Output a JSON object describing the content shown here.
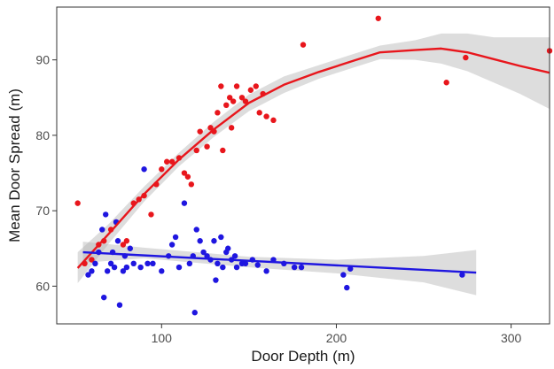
{
  "chart_data": {
    "type": "scatter",
    "title": "",
    "xlabel": "Door Depth (m)",
    "ylabel": "Mean Door Spread (m)",
    "xlim": [
      40,
      322
    ],
    "ylim": [
      55,
      97
    ],
    "xticks": [
      100,
      200,
      300
    ],
    "yticks": [
      60,
      70,
      80,
      90
    ],
    "grid": false,
    "legend": "none",
    "series": [
      {
        "color": "#e8161c",
        "points": [
          [
            52,
            71.0
          ],
          [
            56,
            63.0
          ],
          [
            60,
            63.5
          ],
          [
            64,
            65.5
          ],
          [
            67,
            66.0
          ],
          [
            71,
            67.5
          ],
          [
            74,
            68.5
          ],
          [
            78,
            65.5
          ],
          [
            80,
            66.0
          ],
          [
            84,
            71.0
          ],
          [
            87,
            71.5
          ],
          [
            90,
            72.0
          ],
          [
            94,
            69.5
          ],
          [
            97,
            73.5
          ],
          [
            100,
            75.5
          ],
          [
            103,
            76.5
          ],
          [
            106,
            76.5
          ],
          [
            110,
            77.0
          ],
          [
            113,
            75.0
          ],
          [
            115,
            74.5
          ],
          [
            117,
            73.5
          ],
          [
            120,
            78.0
          ],
          [
            122,
            80.5
          ],
          [
            126,
            78.5
          ],
          [
            128,
            81.0
          ],
          [
            130,
            80.5
          ],
          [
            132,
            83.0
          ],
          [
            134,
            86.5
          ],
          [
            135,
            78.0
          ],
          [
            137,
            84.0
          ],
          [
            139,
            85.0
          ],
          [
            140,
            81.0
          ],
          [
            141,
            84.5
          ],
          [
            143,
            86.5
          ],
          [
            146,
            85.0
          ],
          [
            148,
            84.5
          ],
          [
            151,
            86.0
          ],
          [
            154,
            86.5
          ],
          [
            156,
            83.0
          ],
          [
            158,
            85.5
          ],
          [
            160,
            82.5
          ],
          [
            164,
            82.0
          ],
          [
            181,
            92.0
          ],
          [
            224,
            95.5
          ],
          [
            263,
            87.0
          ],
          [
            274,
            90.3
          ],
          [
            322,
            91.2
          ]
        ],
        "fit": [
          [
            52,
            62.4
          ],
          [
            70,
            67.0
          ],
          [
            90,
            72.2
          ],
          [
            110,
            76.8
          ],
          [
            130,
            80.8
          ],
          [
            150,
            84.3
          ],
          [
            170,
            86.7
          ],
          [
            190,
            88.4
          ],
          [
            210,
            89.9
          ],
          [
            225,
            91.0
          ],
          [
            245,
            91.3
          ],
          [
            260,
            91.5
          ],
          [
            275,
            91.0
          ],
          [
            290,
            90.1
          ],
          [
            305,
            89.2
          ],
          [
            322,
            88.3
          ]
        ],
        "band_upper": [
          [
            52,
            64.5
          ],
          [
            70,
            68.3
          ],
          [
            90,
            73.2
          ],
          [
            110,
            77.7
          ],
          [
            130,
            81.8
          ],
          [
            150,
            85.4
          ],
          [
            170,
            87.8
          ],
          [
            190,
            89.3
          ],
          [
            210,
            90.8
          ],
          [
            225,
            91.9
          ],
          [
            245,
            92.6
          ],
          [
            260,
            93.5
          ],
          [
            275,
            93.5
          ],
          [
            290,
            93.0
          ],
          [
            305,
            93.0
          ],
          [
            322,
            93.0
          ]
        ],
        "band_lower": [
          [
            52,
            60.4
          ],
          [
            70,
            65.7
          ],
          [
            90,
            71.2
          ],
          [
            110,
            75.9
          ],
          [
            130,
            79.8
          ],
          [
            150,
            83.2
          ],
          [
            170,
            85.6
          ],
          [
            190,
            87.5
          ],
          [
            210,
            89.0
          ],
          [
            225,
            90.1
          ],
          [
            245,
            90.0
          ],
          [
            260,
            89.5
          ],
          [
            275,
            88.5
          ],
          [
            290,
            87.0
          ],
          [
            305,
            85.5
          ],
          [
            322,
            83.5
          ]
        ]
      },
      {
        "color": "#1f16e0",
        "points": [
          [
            58,
            61.5
          ],
          [
            60,
            62.0
          ],
          [
            62,
            63.0
          ],
          [
            64,
            64.5
          ],
          [
            66,
            67.5
          ],
          [
            67,
            58.5
          ],
          [
            68,
            69.5
          ],
          [
            69,
            62.0
          ],
          [
            71,
            63.0
          ],
          [
            72,
            64.5
          ],
          [
            73,
            62.5
          ],
          [
            74,
            68.5
          ],
          [
            75,
            66.0
          ],
          [
            76,
            57.5
          ],
          [
            78,
            62.0
          ],
          [
            79,
            64.0
          ],
          [
            80,
            62.5
          ],
          [
            82,
            65.0
          ],
          [
            84,
            63.0
          ],
          [
            88,
            62.5
          ],
          [
            90,
            75.5
          ],
          [
            92,
            63.0
          ],
          [
            95,
            63.0
          ],
          [
            100,
            62.0
          ],
          [
            104,
            64.0
          ],
          [
            106,
            65.5
          ],
          [
            108,
            66.5
          ],
          [
            110,
            62.5
          ],
          [
            113,
            71.0
          ],
          [
            116,
            63.0
          ],
          [
            118,
            64.0
          ],
          [
            119,
            56.5
          ],
          [
            120,
            67.5
          ],
          [
            122,
            66.0
          ],
          [
            124,
            64.5
          ],
          [
            126,
            64.0
          ],
          [
            128,
            63.5
          ],
          [
            130,
            66.0
          ],
          [
            131,
            60.8
          ],
          [
            132,
            63.0
          ],
          [
            134,
            66.5
          ],
          [
            135,
            62.5
          ],
          [
            137,
            64.5
          ],
          [
            138,
            65.0
          ],
          [
            140,
            63.5
          ],
          [
            142,
            64.0
          ],
          [
            143,
            62.5
          ],
          [
            146,
            63.0
          ],
          [
            148,
            63.0
          ],
          [
            152,
            63.5
          ],
          [
            155,
            62.8
          ],
          [
            160,
            62.0
          ],
          [
            164,
            63.5
          ],
          [
            170,
            63.0
          ],
          [
            176,
            62.5
          ],
          [
            180,
            62.5
          ],
          [
            204,
            61.5
          ],
          [
            206,
            59.8
          ],
          [
            208,
            62.3
          ],
          [
            272,
            61.5
          ]
        ],
        "fit": [
          [
            55,
            64.5
          ],
          [
            280,
            61.8
          ]
        ],
        "band_upper": [
          [
            55,
            65.9
          ],
          [
            90,
            65.1
          ],
          [
            150,
            63.9
          ],
          [
            200,
            63.5
          ],
          [
            250,
            64.0
          ],
          [
            280,
            64.8
          ]
        ],
        "band_lower": [
          [
            55,
            63.1
          ],
          [
            90,
            63.7
          ],
          [
            150,
            62.5
          ],
          [
            200,
            61.7
          ],
          [
            250,
            60.5
          ],
          [
            280,
            58.8
          ]
        ]
      }
    ]
  }
}
